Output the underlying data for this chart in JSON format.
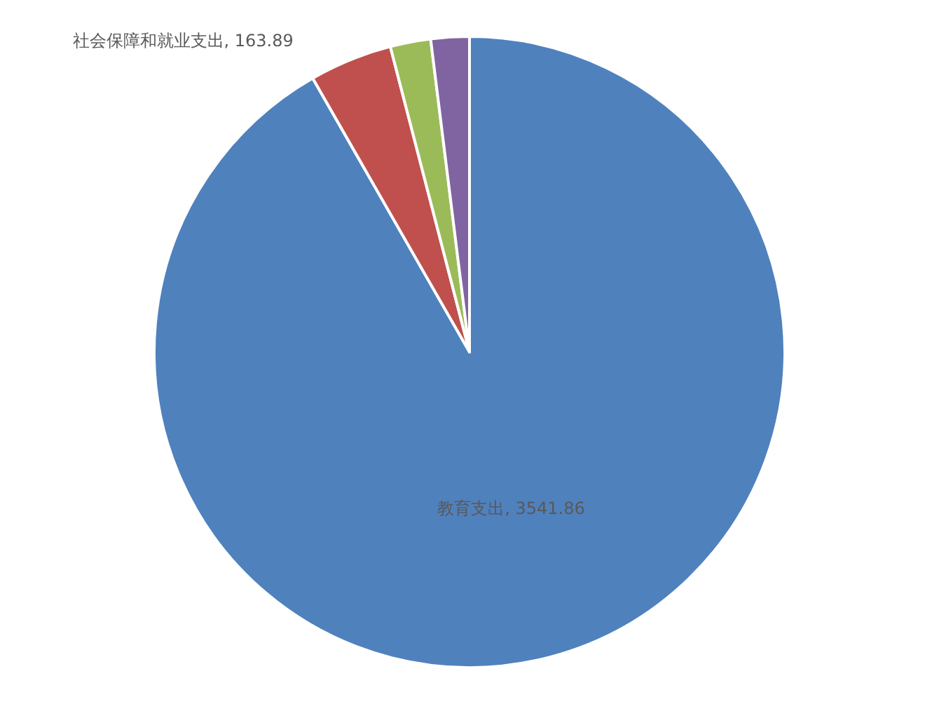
{
  "chart_data": {
    "type": "pie",
    "categories": [
      "教育支出",
      "社会保障和就业支出",
      null,
      null
    ],
    "values": [
      3541.86,
      163.89,
      80,
      76
    ],
    "value_labels": [
      ", 3541.86",
      ", 163.89",
      null,
      null
    ],
    "colors": [
      "#4f81bd",
      "#c0504d",
      "#9bbb59",
      "#8064a2"
    ],
    "legend": false
  }
}
